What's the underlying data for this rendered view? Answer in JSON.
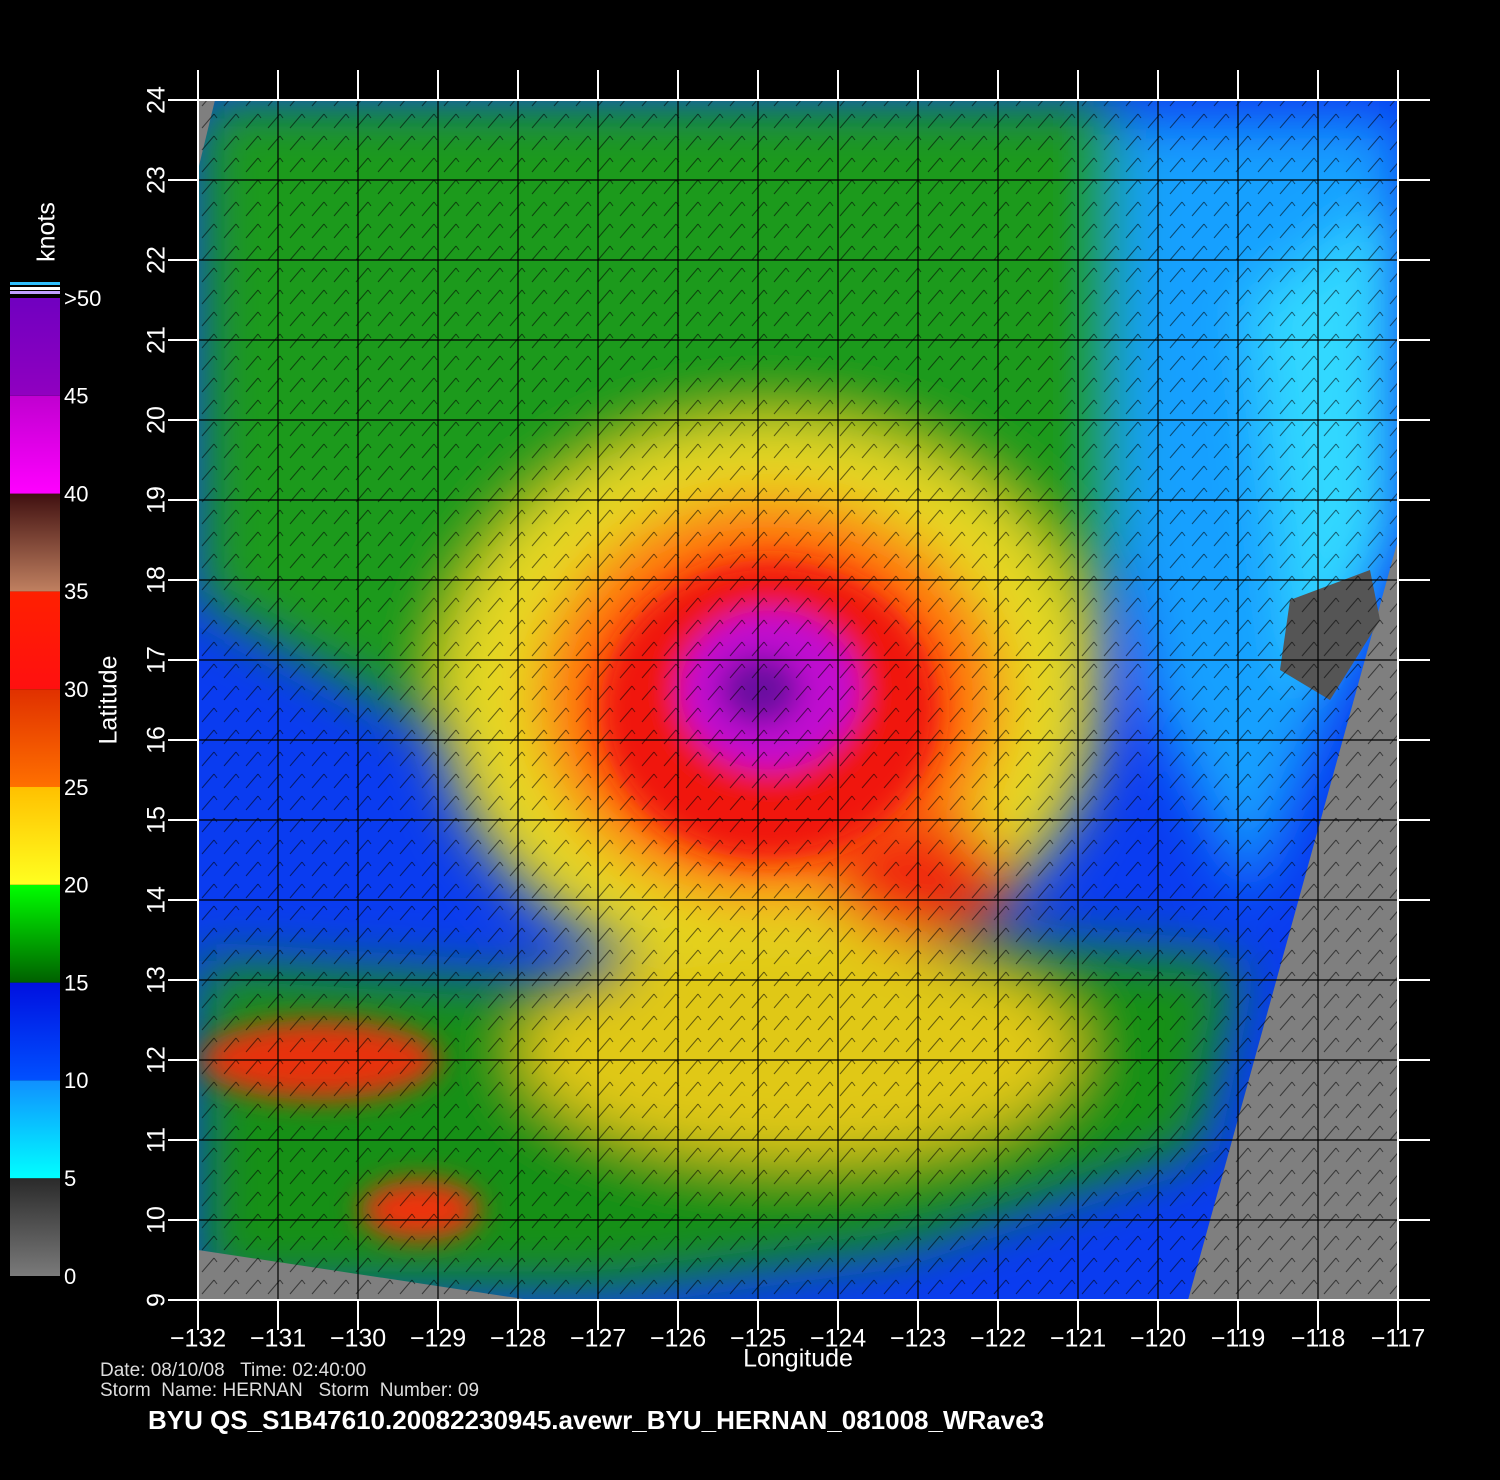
{
  "map": {
    "xlabel": "Longitude",
    "ylabel": "Latitude",
    "xlim": [
      -132,
      -117
    ],
    "ylim": [
      9,
      24
    ],
    "xticks": [
      {
        "value": -132,
        "label": "−132"
      },
      {
        "value": -131,
        "label": "−131"
      },
      {
        "value": -130,
        "label": "−130"
      },
      {
        "value": -129,
        "label": "−129"
      },
      {
        "value": -128,
        "label": "−128"
      },
      {
        "value": -127,
        "label": "−127"
      },
      {
        "value": -126,
        "label": "−126"
      },
      {
        "value": -125,
        "label": "−125"
      },
      {
        "value": -124,
        "label": "−124"
      },
      {
        "value": -123,
        "label": "−123"
      },
      {
        "value": -122,
        "label": "−122"
      },
      {
        "value": -121,
        "label": "−121"
      },
      {
        "value": -120,
        "label": "−120"
      },
      {
        "value": -119,
        "label": "−119"
      },
      {
        "value": -118,
        "label": "−118"
      },
      {
        "value": -117,
        "label": "−117"
      }
    ],
    "yticks": [
      9,
      10,
      11,
      12,
      13,
      14,
      15,
      16,
      17,
      18,
      19,
      20,
      21,
      22,
      23,
      24
    ],
    "grid": true
  },
  "colorbar": {
    "title": "knots",
    "range": [
      0,
      50
    ],
    "ticks": [
      0,
      5,
      10,
      15,
      20,
      25,
      30,
      35,
      40,
      45,
      {
        "value": 50,
        "label": ">50"
      }
    ],
    "colors": [
      [
        "#7a7a7a",
        "#2a2a2a"
      ],
      [
        "#00ffff",
        "#1090ff"
      ],
      [
        "#0050ff",
        "#0010e0"
      ],
      [
        "#006000",
        "#00ff00"
      ],
      [
        "#ffff20",
        "#ffc000"
      ],
      [
        "#ff7000",
        "#e03000"
      ],
      [
        "#ff1010",
        "#ff2000"
      ],
      [
        "#c08060",
        "#401010"
      ],
      [
        "#ff00ff",
        "#c000d0"
      ],
      [
        "#9000c0",
        "#7000c0"
      ]
    ]
  },
  "footer": {
    "date": "Date: 08/10/08   Time: 02:40:00",
    "storm": "Storm  Name: HERNAN   Storm  Number: 09",
    "file": "BYU  QS_S1B47610.20082230945.avewr_BYU_HERNAN_081008_WRave3"
  }
}
